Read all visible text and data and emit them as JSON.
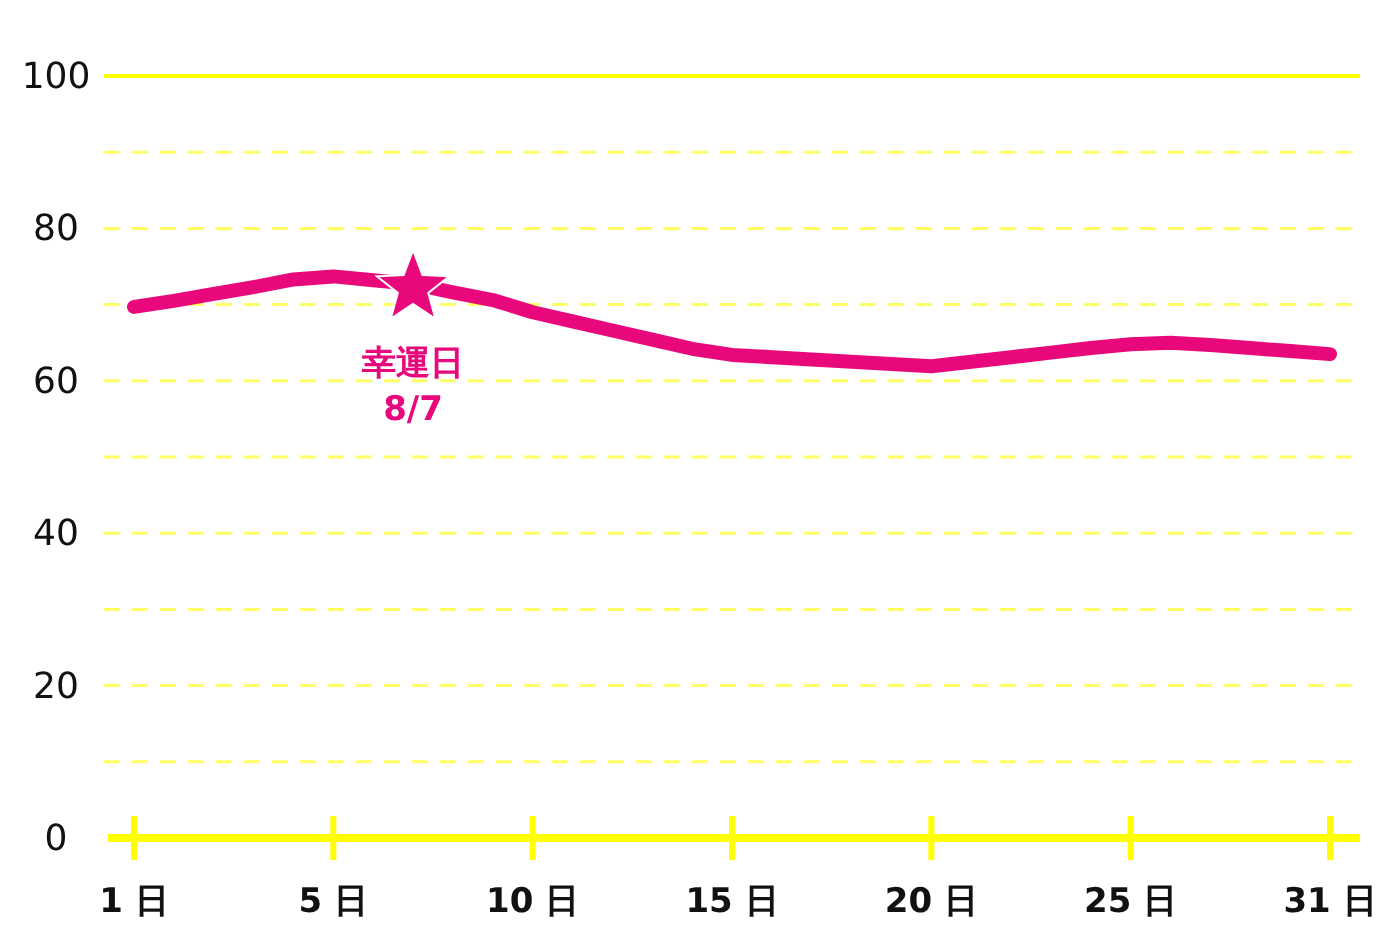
{
  "chart_data": {
    "type": "line",
    "categories": [
      "1 日",
      null,
      null,
      null,
      null,
      "5 日",
      null,
      null,
      null,
      null,
      "10 日",
      null,
      null,
      null,
      null,
      "15 日",
      null,
      null,
      null,
      null,
      "20 日",
      null,
      null,
      null,
      null,
      "25 日",
      null,
      null,
      null,
      null,
      "31 日"
    ],
    "series": [
      {
        "color": "#e8087c",
        "values": [
          69.7,
          70.5,
          71.4,
          72.3,
          73.3,
          73.7,
          73.2,
          72.7,
          71.6,
          70.6,
          69.0,
          67.8,
          66.6,
          65.4,
          64.2,
          63.4,
          63.1,
          62.8,
          62.5,
          62.2,
          61.9,
          62.5,
          63.1,
          63.7,
          64.3,
          64.8,
          65.0,
          64.7,
          64.3,
          63.9,
          63.5
        ]
      },
      {
        "type": "scatter",
        "marker": "star",
        "color": "#e8087c",
        "values": [
          null,
          null,
          null,
          null,
          null,
          null,
          null,
          72.7,
          null,
          null,
          null,
          null,
          null,
          null,
          null,
          null,
          null,
          null,
          null,
          null,
          null,
          null,
          null,
          null,
          null,
          null,
          null,
          null,
          null,
          null,
          null
        ]
      }
    ],
    "ylim": [
      0,
      100
    ],
    "yticks": [
      0,
      {
        "value": 10,
        "label": null
      },
      20,
      {
        "value": 30,
        "label": null
      },
      40,
      {
        "value": 50,
        "label": null
      },
      60,
      {
        "value": 70,
        "label": null
      },
      80,
      {
        "value": 90,
        "label": null
      },
      100
    ],
    "grid": "y",
    "marker": "none",
    "line_style": "solid",
    "annotations": [
      "幸運日",
      "8/7"
    ]
  }
}
